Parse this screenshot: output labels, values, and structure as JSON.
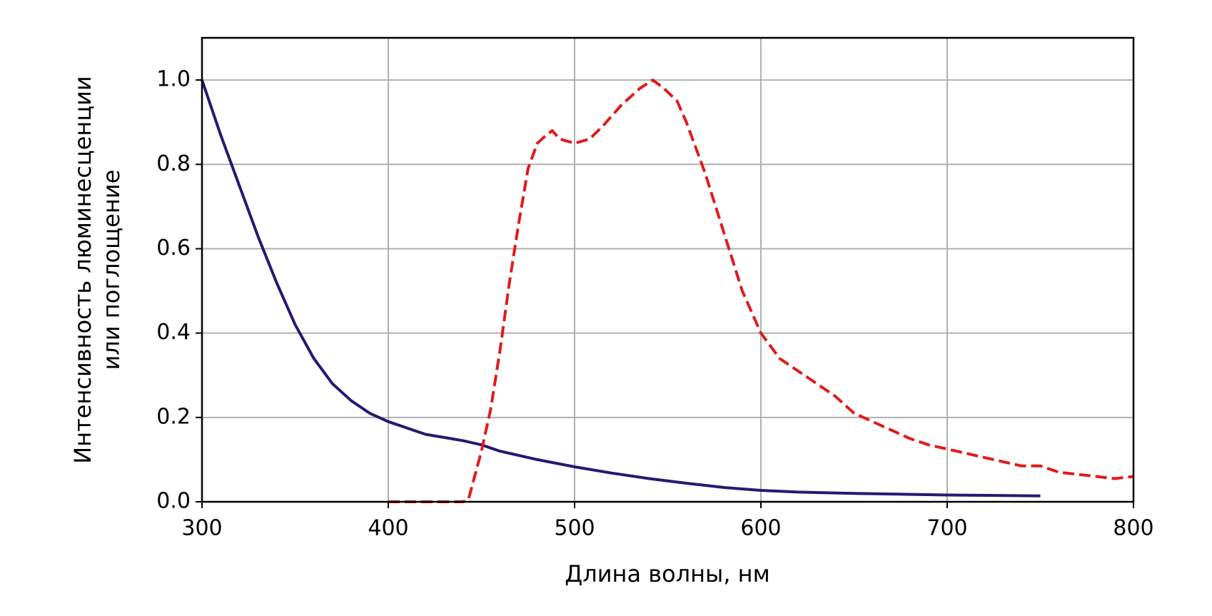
{
  "chart_data": {
    "type": "line",
    "xlabel": "Длина волны, нм",
    "ylabel": [
      "Интенсивность люминесценции",
      "или поглощение"
    ],
    "xlim": [
      300,
      800
    ],
    "ylim": [
      0,
      1.1
    ],
    "xticks": [
      300,
      400,
      500,
      600,
      700,
      800
    ],
    "yticks": [
      {
        "value": 0,
        "label": "0.0"
      },
      0.2,
      0.4,
      0.6,
      0.8,
      {
        "value": 1,
        "label": "1.0"
      }
    ],
    "grid": true,
    "series": [
      {
        "color": "#241a72",
        "style": "solid",
        "x": [
          300,
          310,
          320,
          330,
          340,
          350,
          360,
          370,
          380,
          390,
          400,
          420,
          440,
          450,
          460,
          480,
          500,
          520,
          540,
          560,
          580,
          600,
          620,
          650,
          700,
          750
        ],
        "values": [
          1.0,
          0.87,
          0.75,
          0.63,
          0.52,
          0.42,
          0.34,
          0.28,
          0.24,
          0.21,
          0.19,
          0.16,
          0.145,
          0.135,
          0.12,
          0.1,
          0.083,
          0.068,
          0.055,
          0.044,
          0.034,
          0.027,
          0.023,
          0.02,
          0.016,
          0.014
        ]
      },
      {
        "color": "#e01b1b",
        "style": "dashed",
        "x": [
          400,
          440,
          443,
          450,
          455,
          460,
          465,
          470,
          475,
          480,
          485,
          488,
          492,
          500,
          508,
          515,
          525,
          535,
          542,
          548,
          555,
          560,
          570,
          580,
          590,
          600,
          610,
          620,
          630,
          640,
          650,
          660,
          670,
          680,
          690,
          700,
          710,
          720,
          730,
          740,
          750,
          760,
          770,
          780,
          790,
          800
        ],
        "values": [
          0,
          0,
          0.005,
          0.12,
          0.22,
          0.36,
          0.52,
          0.66,
          0.79,
          0.85,
          0.87,
          0.88,
          0.86,
          0.85,
          0.86,
          0.89,
          0.94,
          0.98,
          1.0,
          0.98,
          0.95,
          0.9,
          0.78,
          0.64,
          0.5,
          0.4,
          0.34,
          0.31,
          0.28,
          0.25,
          0.21,
          0.19,
          0.17,
          0.15,
          0.135,
          0.125,
          0.115,
          0.105,
          0.095,
          0.085,
          0.085,
          0.07,
          0.065,
          0.06,
          0.055,
          0.06
        ]
      }
    ]
  }
}
